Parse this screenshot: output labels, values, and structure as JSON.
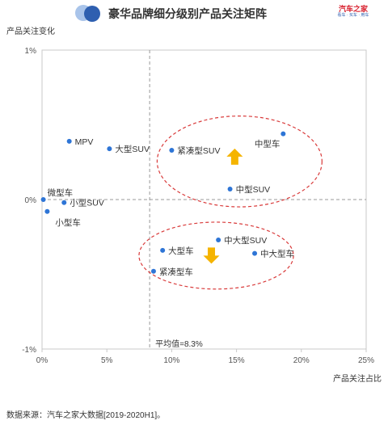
{
  "header": {
    "title": "豪华品牌细分级别产品关注矩阵",
    "logo_text": "汽车之家",
    "logo_sub": "看车 · 买车 · 用车",
    "accent_dot_color": "#2e5fb0",
    "accent_dot_light_color": "#a9c4ea"
  },
  "source": "数据来源：汽车之家大数据[2019-2020H1]。",
  "chart_data": {
    "type": "scatter",
    "ylabel": "产品关注变化",
    "xlabel": "产品关注占比",
    "xlim": [
      0,
      25
    ],
    "ylim": [
      -1,
      1
    ],
    "x_ticks": [
      "0%",
      "5%",
      "10%",
      "15%",
      "20%",
      "25%"
    ],
    "y_ticks": [
      "1%",
      "0%",
      "-1%"
    ],
    "x_tick_values": [
      0,
      5,
      10,
      15,
      20,
      25
    ],
    "y_tick_values": [
      1,
      0,
      -1
    ],
    "point_color": "#2e75d6",
    "reference_line": {
      "x": 8.3,
      "label": "平均值=8.3%"
    },
    "points": [
      {
        "label": "MPV",
        "x": 2.1,
        "y": 0.39,
        "label_side": "right"
      },
      {
        "label": "大型SUV",
        "x": 5.2,
        "y": 0.34,
        "label_side": "right"
      },
      {
        "label": "紧凑型SUV",
        "x": 10.0,
        "y": 0.33,
        "label_side": "right"
      },
      {
        "label": "中型车",
        "x": 18.6,
        "y": 0.44,
        "label_side": "below-left"
      },
      {
        "label": "中型SUV",
        "x": 14.5,
        "y": 0.07,
        "label_side": "right"
      },
      {
        "label": "微型车",
        "x": 0.1,
        "y": 0.0,
        "label_side": "above-right"
      },
      {
        "label": "小型SUV",
        "x": 1.7,
        "y": -0.02,
        "label_side": "right"
      },
      {
        "label": "小型车",
        "x": 0.4,
        "y": -0.08,
        "label_side": "below-right"
      },
      {
        "label": "中大型SUV",
        "x": 13.6,
        "y": -0.27,
        "label_side": "right"
      },
      {
        "label": "中大型车",
        "x": 16.4,
        "y": -0.36,
        "label_side": "right"
      },
      {
        "label": "大型车",
        "x": 9.3,
        "y": -0.34,
        "label_side": "right"
      },
      {
        "label": "紧凑型车",
        "x": 8.6,
        "y": -0.48,
        "label_side": "right"
      }
    ],
    "clusters": [
      {
        "trend": "up",
        "color": "#d93a3a"
      },
      {
        "trend": "down",
        "color": "#d93a3a"
      }
    ],
    "arrow_color": "#f5b400",
    "grid": false
  }
}
